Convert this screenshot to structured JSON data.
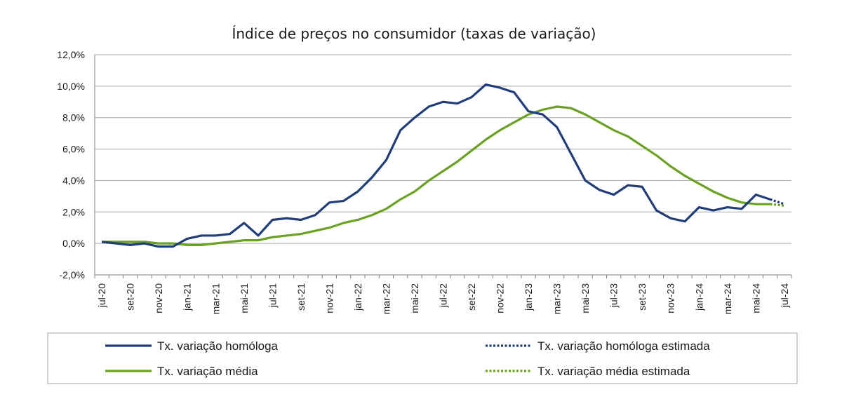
{
  "chart_data": {
    "type": "line",
    "title": "Índice de preços no consumidor  (taxas  de variação)",
    "ylim": [
      -2,
      12
    ],
    "yticks": [
      -2,
      0,
      2,
      4,
      6,
      8,
      10,
      12
    ],
    "ytick_labels": [
      "-2,0%",
      "0,0%",
      "2,0%",
      "4,0%",
      "6,0%",
      "8,0%",
      "10,0%",
      "12,0%"
    ],
    "months": [
      "jul-20",
      "ago-20",
      "set-20",
      "out-20",
      "nov-20",
      "dez-20",
      "jan-21",
      "fev-21",
      "mar-21",
      "abr-21",
      "mai-21",
      "jun-21",
      "jul-21",
      "ago-21",
      "set-21",
      "out-21",
      "nov-21",
      "dez-21",
      "jan-22",
      "fev-22",
      "mar-22",
      "abr-22",
      "mai-22",
      "jun-22",
      "jul-22",
      "ago-22",
      "set-22",
      "out-22",
      "nov-22",
      "dez-22",
      "jan-23",
      "fev-23",
      "mar-23",
      "abr-23",
      "mai-23",
      "jun-23",
      "jul-23",
      "ago-23",
      "set-23",
      "out-23",
      "nov-23",
      "dez-23",
      "jan-24",
      "fev-24",
      "mar-24",
      "abr-24",
      "mai-24",
      "jun-24",
      "jul-24"
    ],
    "xtick_labels": [
      "jul-20",
      "set-20",
      "nov-20",
      "jan-21",
      "mar-21",
      "mai-21",
      "jul-21",
      "set-21",
      "nov-21",
      "jan-22",
      "mar-22",
      "mai-22",
      "jul-22",
      "set-22",
      "nov-22",
      "jan-23",
      "mar-23",
      "mai-23",
      "jul-23",
      "set-23",
      "nov-23",
      "jan-24",
      "mar-24",
      "mai-24",
      "jul-24"
    ],
    "series": [
      {
        "name": "Tx. variação homóloga",
        "color": "#1f3d7a",
        "style": "solid",
        "values": [
          0.1,
          0.0,
          -0.1,
          0.0,
          -0.2,
          -0.2,
          0.3,
          0.5,
          0.5,
          0.6,
          1.3,
          0.5,
          1.5,
          1.6,
          1.5,
          1.8,
          2.6,
          2.7,
          3.3,
          4.2,
          5.3,
          7.2,
          8.0,
          8.7,
          9.0,
          8.9,
          9.3,
          10.1,
          9.9,
          9.6,
          8.4,
          8.2,
          7.4,
          5.7,
          4.0,
          3.4,
          3.1,
          3.7,
          3.6,
          2.1,
          1.6,
          1.4,
          2.3,
          2.1,
          2.3,
          2.2,
          3.1,
          2.8,
          null
        ]
      },
      {
        "name": "Tx. variação homóloga estimada",
        "color": "#1f3d7a",
        "style": "dotted",
        "values": [
          null,
          null,
          null,
          null,
          null,
          null,
          null,
          null,
          null,
          null,
          null,
          null,
          null,
          null,
          null,
          null,
          null,
          null,
          null,
          null,
          null,
          null,
          null,
          null,
          null,
          null,
          null,
          null,
          null,
          null,
          null,
          null,
          null,
          null,
          null,
          null,
          null,
          null,
          null,
          null,
          null,
          null,
          null,
          null,
          null,
          null,
          null,
          2.8,
          2.5
        ]
      },
      {
        "name": "Tx. variação média",
        "color": "#6aa121",
        "style": "solid",
        "values": [
          0.1,
          0.1,
          0.1,
          0.1,
          0.0,
          0.0,
          -0.1,
          -0.1,
          0.0,
          0.1,
          0.2,
          0.2,
          0.4,
          0.5,
          0.6,
          0.8,
          1.0,
          1.3,
          1.5,
          1.8,
          2.2,
          2.8,
          3.3,
          4.0,
          4.6,
          5.2,
          5.9,
          6.6,
          7.2,
          7.7,
          8.2,
          8.5,
          8.7,
          8.6,
          8.2,
          7.7,
          7.2,
          6.8,
          6.2,
          5.6,
          4.9,
          4.3,
          3.8,
          3.3,
          2.9,
          2.6,
          2.5,
          2.5,
          null
        ]
      },
      {
        "name": "Tx. variação média  estimada",
        "color": "#6aa121",
        "style": "dotted",
        "values": [
          null,
          null,
          null,
          null,
          null,
          null,
          null,
          null,
          null,
          null,
          null,
          null,
          null,
          null,
          null,
          null,
          null,
          null,
          null,
          null,
          null,
          null,
          null,
          null,
          null,
          null,
          null,
          null,
          null,
          null,
          null,
          null,
          null,
          null,
          null,
          null,
          null,
          null,
          null,
          null,
          null,
          null,
          null,
          null,
          null,
          null,
          null,
          2.5,
          2.4
        ]
      }
    ],
    "legend": [
      {
        "label": "Tx. variação homóloga",
        "color": "#1f3d7a",
        "style": "solid"
      },
      {
        "label": "Tx. variação homóloga estimada",
        "color": "#1f3d7a",
        "style": "dotted"
      },
      {
        "label": "Tx. variação média",
        "color": "#6aa121",
        "style": "solid"
      },
      {
        "label": "Tx. variação média  estimada",
        "color": "#6aa121",
        "style": "dotted"
      }
    ]
  }
}
